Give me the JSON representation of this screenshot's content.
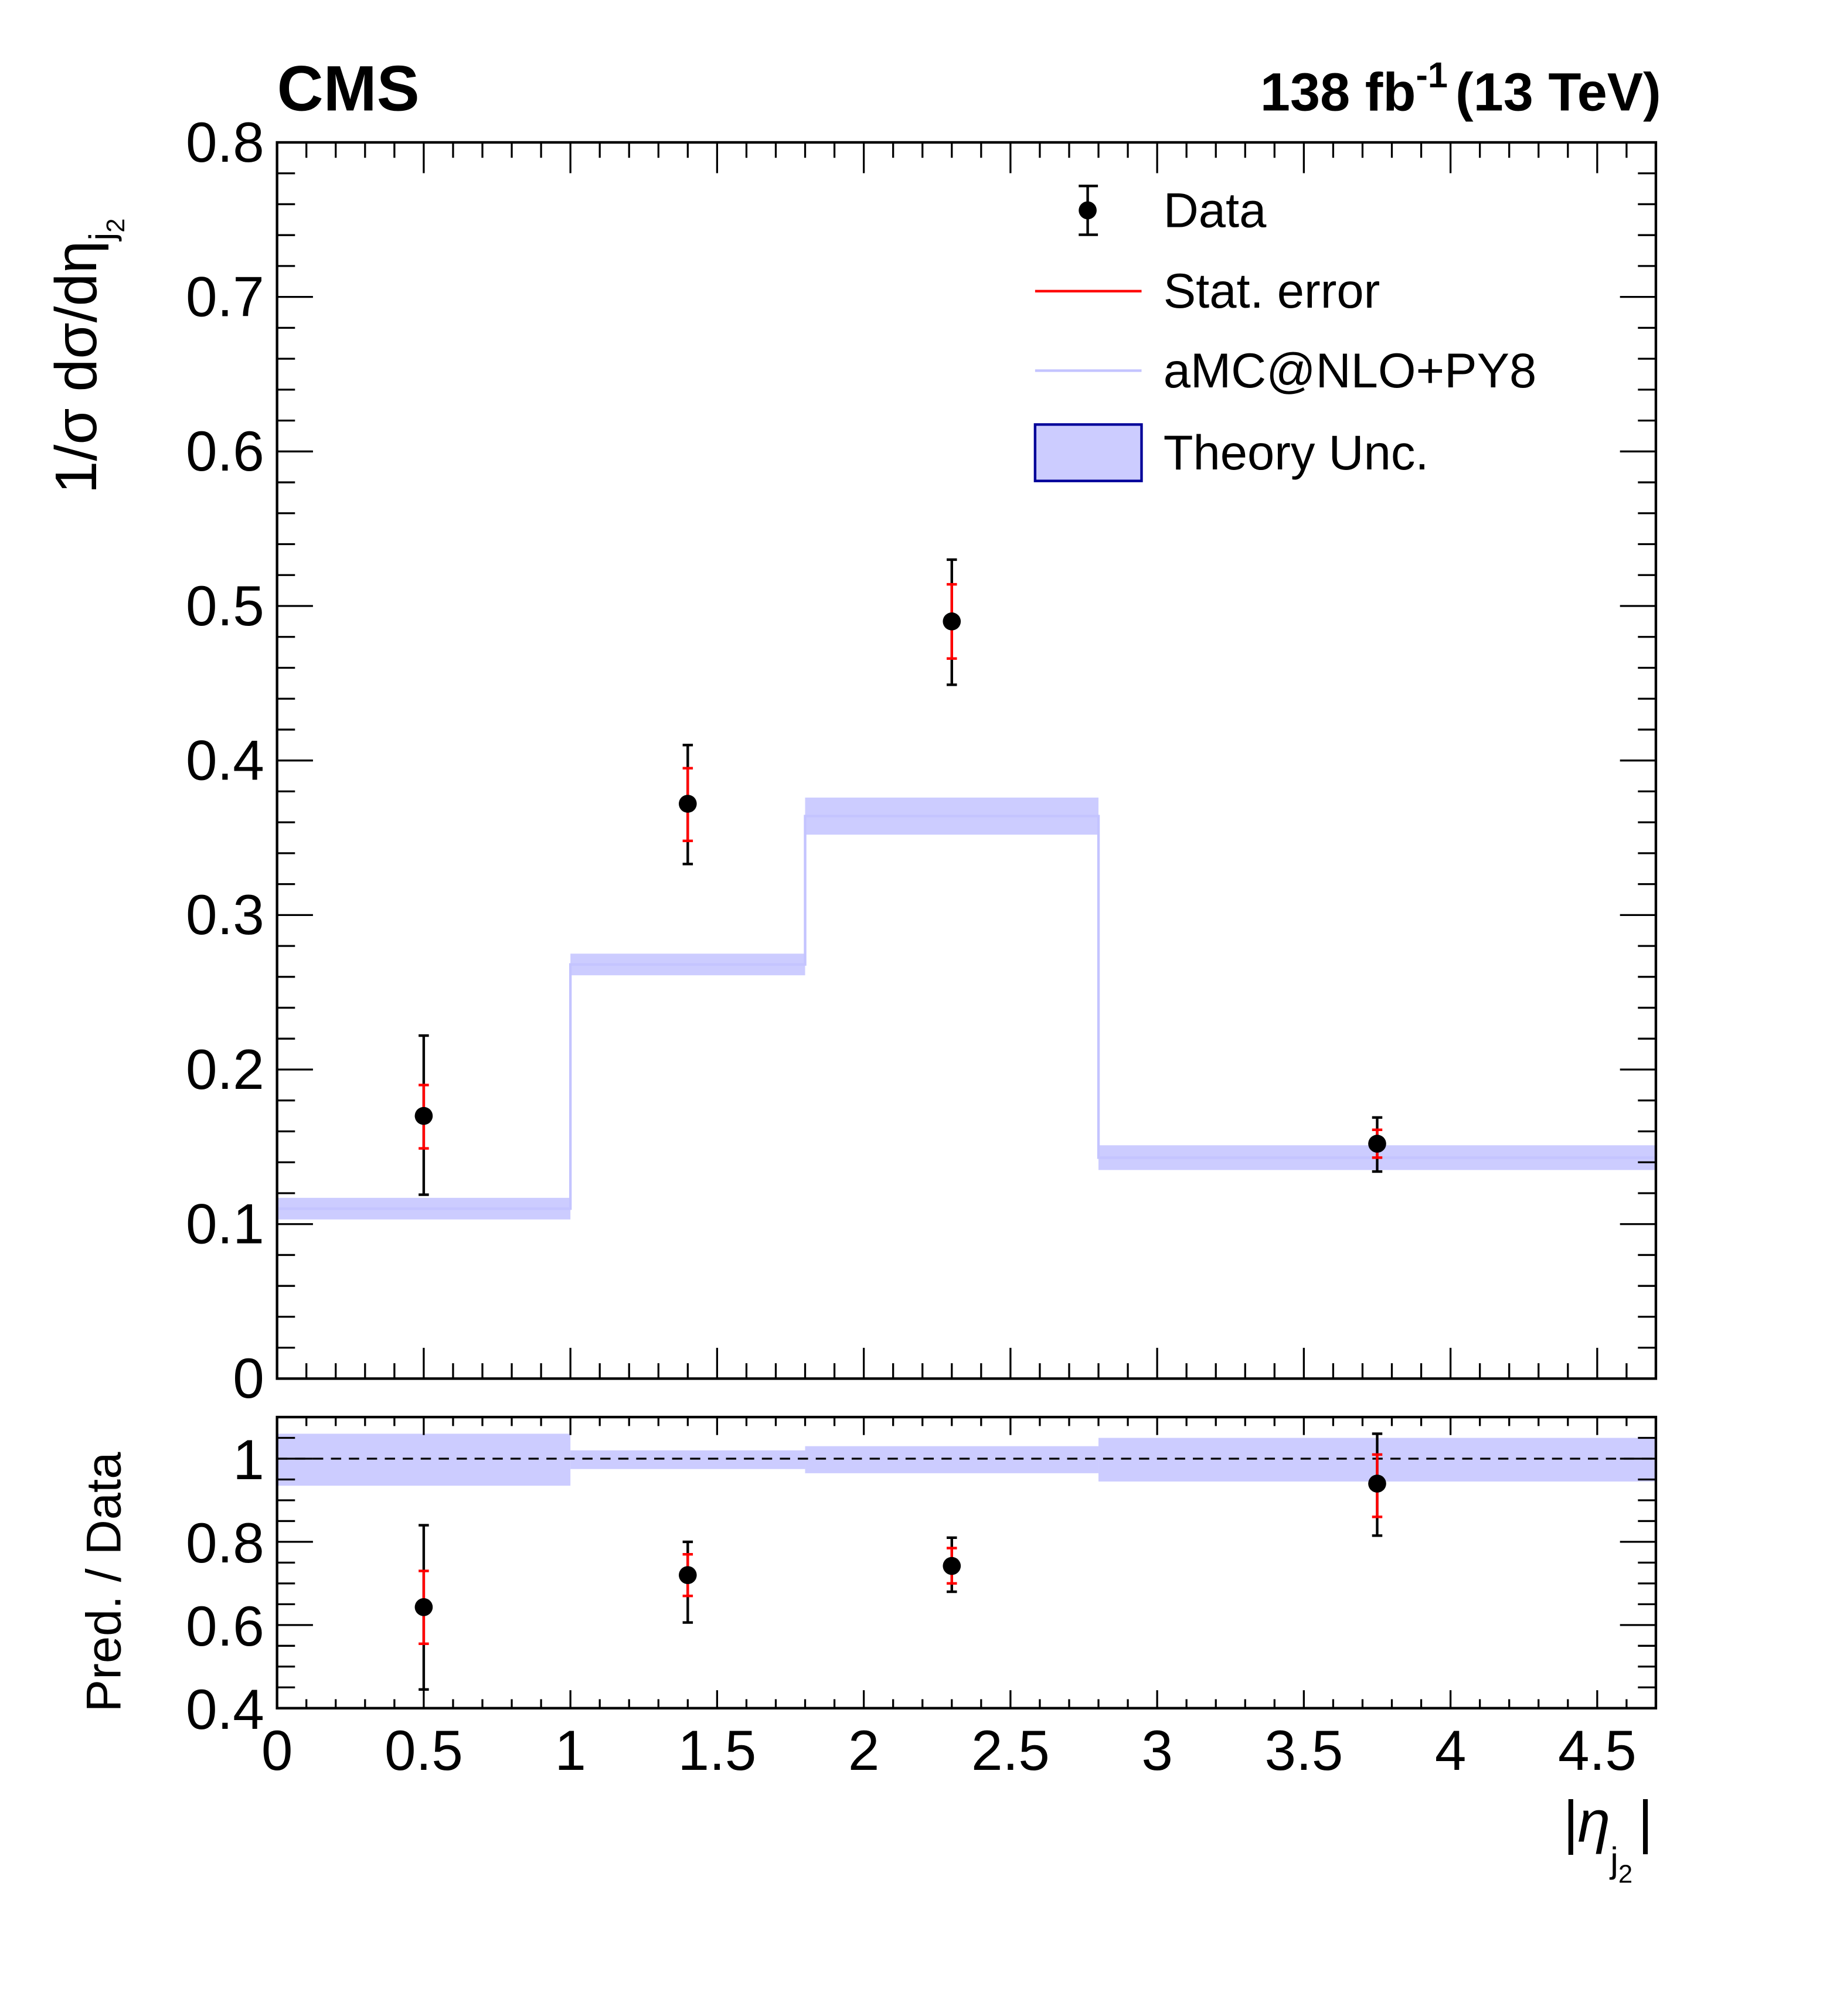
{
  "chart_data": {
    "type": "scatter",
    "experiment": "CMS",
    "lumi_label": "138 fb",
    "lumi_exp": "-1",
    "energy_label": "(13 TeV)",
    "xlabel": "|η",
    "xlabel_sub": "j",
    "xlabel_subsub": "2",
    "xlabel_end": "|",
    "ylabel": "1/σ dσ/dη",
    "ylabel_sub": "j",
    "ylabel_subsub": "2",
    "ratio_ylabel": "Pred. / Data",
    "xlim": [
      0,
      4.7
    ],
    "ylim": [
      0,
      0.8
    ],
    "ratio_ylim": [
      0.4,
      1.1
    ],
    "x_ticks": [
      "0",
      "0.5",
      "1",
      "1.5",
      "2",
      "2.5",
      "3",
      "3.5",
      "4",
      "4.5"
    ],
    "y_ticks": [
      "0",
      "0.1",
      "0.2",
      "0.3",
      "0.4",
      "0.5",
      "0.6",
      "0.7",
      "0.8"
    ],
    "ratio_y_ticks": [
      "0.4",
      "0.6",
      "0.8",
      "1"
    ],
    "legend": {
      "placement": "top-right",
      "entries": [
        "Data",
        "Stat. error",
        "aMC@NLO+PY8",
        "Theory Unc."
      ]
    },
    "bins": [
      [
        0,
        1
      ],
      [
        1,
        1.8
      ],
      [
        1.8,
        2.8
      ],
      [
        2.8,
        4.7
      ]
    ],
    "data": [
      {
        "x": 0.5,
        "y": 0.17,
        "tot_lo": 0.119,
        "tot_hi": 0.222,
        "stat_lo": 0.149,
        "stat_hi": 0.19
      },
      {
        "x": 1.4,
        "y": 0.372,
        "tot_lo": 0.333,
        "tot_hi": 0.41,
        "stat_lo": 0.348,
        "stat_hi": 0.395
      },
      {
        "x": 2.3,
        "y": 0.49,
        "tot_lo": 0.449,
        "tot_hi": 0.53,
        "stat_lo": 0.466,
        "stat_hi": 0.514
      },
      {
        "x": 3.75,
        "y": 0.152,
        "tot_lo": 0.134,
        "tot_hi": 0.169,
        "stat_lo": 0.143,
        "stat_hi": 0.161
      }
    ],
    "prediction": [
      {
        "y": 0.11,
        "lo": 0.103,
        "hi": 0.117
      },
      {
        "y": 0.268,
        "lo": 0.261,
        "hi": 0.275
      },
      {
        "y": 0.364,
        "lo": 0.352,
        "hi": 0.376
      },
      {
        "y": 0.143,
        "lo": 0.135,
        "hi": 0.151
      }
    ],
    "ratio": [
      {
        "x": 0.5,
        "y": 0.643,
        "tot_lo": 0.445,
        "tot_hi": 0.84,
        "stat_lo": 0.555,
        "stat_hi": 0.73
      },
      {
        "x": 1.4,
        "y": 0.72,
        "tot_lo": 0.606,
        "tot_hi": 0.8,
        "stat_lo": 0.67,
        "stat_hi": 0.77
      },
      {
        "x": 2.3,
        "y": 0.742,
        "tot_lo": 0.68,
        "tot_hi": 0.81,
        "stat_lo": 0.7,
        "stat_hi": 0.785
      },
      {
        "x": 3.75,
        "y": 0.94,
        "tot_lo": 0.815,
        "tot_hi": 1.06,
        "stat_lo": 0.86,
        "stat_hi": 1.01
      }
    ],
    "ratio_band": [
      {
        "lo": 0.935,
        "hi": 1.06
      },
      {
        "lo": 0.975,
        "hi": 1.02
      },
      {
        "lo": 0.965,
        "hi": 1.03
      },
      {
        "lo": 0.945,
        "hi": 1.05
      }
    ],
    "colors": {
      "data": "#000000",
      "stat": "#ff0000",
      "pred_line": "#c4c4ff",
      "band": "#ccccff",
      "band_border": "#000099"
    }
  }
}
